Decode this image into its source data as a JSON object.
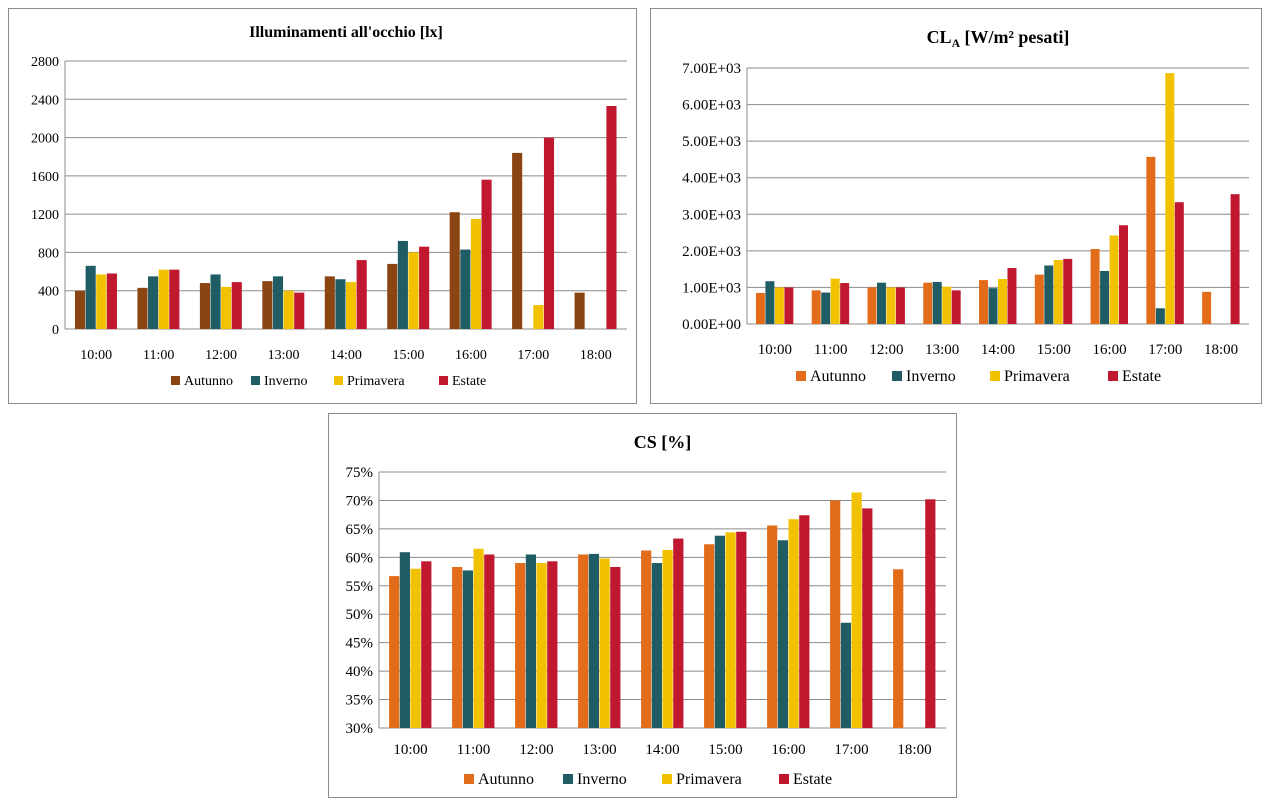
{
  "chart_data": [
    {
      "type": "bar",
      "title": "Illuminamenti all'occhio [lx]",
      "categories": [
        "10:00",
        "11:00",
        "12:00",
        "13:00",
        "14:00",
        "15:00",
        "16:00",
        "17:00",
        "18:00"
      ],
      "ylim": [
        0,
        2800
      ],
      "yticks": [
        "0",
        "400",
        "800",
        "1200",
        "1600",
        "2000",
        "2400",
        "2800"
      ],
      "ytick_values": [
        0,
        400,
        800,
        1200,
        1600,
        2000,
        2400,
        2800
      ],
      "grid": true,
      "legend": "bottom",
      "series": [
        {
          "name": "Autunno",
          "color": "#8B4513",
          "values": [
            400,
            430,
            480,
            500,
            550,
            680,
            1220,
            1840,
            380
          ]
        },
        {
          "name": "Inverno",
          "color": "#1F5C63",
          "values": [
            660,
            550,
            570,
            550,
            520,
            920,
            830,
            0,
            0
          ]
        },
        {
          "name": "Primavera",
          "color": "#F2C200",
          "values": [
            570,
            620,
            440,
            400,
            490,
            800,
            1150,
            250,
            0
          ]
        },
        {
          "name": "Estate",
          "color": "#C0182F",
          "values": [
            580,
            620,
            490,
            380,
            720,
            860,
            1560,
            2000,
            2330
          ]
        }
      ]
    },
    {
      "type": "bar",
      "title": "CL",
      "title_sub": "A",
      "title_rest": " [W/m² pesati]",
      "categories": [
        "10:00",
        "11:00",
        "12:00",
        "13:00",
        "14:00",
        "15:00",
        "16:00",
        "17:00",
        "18:00"
      ],
      "ylim": [
        0,
        7000
      ],
      "yticks": [
        "0.00E+00",
        "1.00E+03",
        "2.00E+03",
        "3.00E+03",
        "4.00E+03",
        "5.00E+03",
        "6.00E+03",
        "7.00E+03"
      ],
      "ytick_values": [
        0,
        1000,
        2000,
        3000,
        4000,
        5000,
        6000,
        7000
      ],
      "grid": true,
      "legend": "bottom",
      "series": [
        {
          "name": "Autunno",
          "color": "#E36C1A",
          "values": [
            850,
            920,
            1000,
            1130,
            1200,
            1350,
            2050,
            4570,
            880
          ]
        },
        {
          "name": "Inverno",
          "color": "#1F5C63",
          "values": [
            1170,
            860,
            1130,
            1150,
            980,
            1600,
            1450,
            430,
            0
          ]
        },
        {
          "name": "Primavera",
          "color": "#F2C200",
          "values": [
            1000,
            1240,
            1000,
            1020,
            1230,
            1750,
            2420,
            6860,
            0
          ]
        },
        {
          "name": "Estate",
          "color": "#C0182F",
          "values": [
            1000,
            1120,
            1000,
            920,
            1530,
            1780,
            2700,
            3330,
            3550
          ]
        }
      ]
    },
    {
      "type": "bar",
      "title": "CS [%]",
      "categories": [
        "10:00",
        "11:00",
        "12:00",
        "13:00",
        "14:00",
        "15:00",
        "16:00",
        "17:00",
        "18:00"
      ],
      "ylim": [
        30,
        75
      ],
      "yticks": [
        "30%",
        "35%",
        "40%",
        "45%",
        "50%",
        "55%",
        "60%",
        "65%",
        "70%",
        "75%"
      ],
      "ytick_values": [
        30,
        35,
        40,
        45,
        50,
        55,
        60,
        65,
        70,
        75
      ],
      "grid": true,
      "legend": "bottom",
      "series": [
        {
          "name": "Autunno",
          "color": "#E36C1A",
          "values": [
            56.7,
            58.3,
            59.0,
            60.5,
            61.2,
            62.3,
            65.6,
            70.0,
            57.9
          ]
        },
        {
          "name": "Inverno",
          "color": "#1F5C63",
          "values": [
            60.9,
            57.7,
            60.5,
            60.6,
            59.0,
            63.8,
            63.0,
            48.5,
            null
          ]
        },
        {
          "name": "Primavera",
          "color": "#F2C200",
          "values": [
            58.0,
            61.5,
            59.0,
            59.8,
            61.3,
            64.4,
            66.7,
            71.4,
            null
          ]
        },
        {
          "name": "Estate",
          "color": "#C0182F",
          "values": [
            59.3,
            60.5,
            59.3,
            58.3,
            63.3,
            64.5,
            67.4,
            68.6,
            70.2
          ]
        }
      ]
    }
  ]
}
